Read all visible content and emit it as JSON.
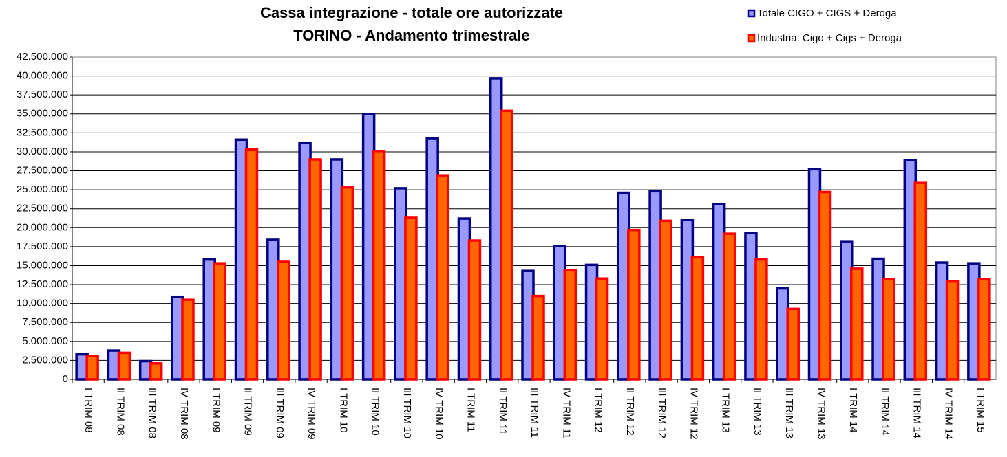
{
  "chart_data": {
    "type": "bar",
    "title": [
      "Cassa integrazione - totale ore autorizzate",
      "TORINO - Andamento trimestrale"
    ],
    "categories": [
      "I TRIM 08",
      "II TRIM 08",
      "III TRIM 08",
      "IV TRIM 08",
      "I TRIM 09",
      "II TRIM 09",
      "III TRIM 09",
      "IV TRIM 09",
      "I TRIM 10",
      "II TRIM 10",
      "III TRIM 10",
      "IV TRIM 10",
      "I TRIM 11",
      "II TRIM 11",
      "III TRIM 11",
      "IV TRIM 11",
      "I TRIM 12",
      "II TRIM 12",
      "III TRIM 12",
      "IV TRIM 12",
      "I TRIM 13",
      "II TRIM 13",
      "III TRIM 13",
      "IV TRIM 13",
      "I TRIM 14",
      "II TRIM 14",
      "III TRIM 14",
      "IV TRIM 14",
      "I TRIM 15"
    ],
    "series": [
      {
        "name": "Totale CIGO + CIGS + Deroga",
        "color": "#000080",
        "fill": "#9999ff",
        "values": [
          3300000,
          3800000,
          2400000,
          10900000,
          15800000,
          31600000,
          18400000,
          31200000,
          29000000,
          35000000,
          25200000,
          31800000,
          21200000,
          39700000,
          14300000,
          17600000,
          15100000,
          24600000,
          24800000,
          21000000,
          23100000,
          19300000,
          12000000,
          27700000,
          18200000,
          15900000,
          28900000,
          15400000,
          15300000
        ]
      },
      {
        "name": "Industria: Cigo + Cigs + Deroga",
        "color": "#ff0000",
        "fill": "#ff6600",
        "values": [
          3100000,
          3500000,
          2100000,
          10500000,
          15300000,
          30300000,
          15500000,
          29000000,
          25300000,
          30100000,
          21300000,
          26900000,
          18300000,
          35400000,
          11000000,
          14400000,
          13300000,
          19700000,
          20900000,
          16100000,
          19200000,
          15800000,
          9300000,
          24700000,
          14600000,
          13200000,
          25900000,
          12900000,
          13200000
        ]
      }
    ],
    "ylim": [
      0,
      42500000
    ],
    "yticks": [
      0,
      {
        "value": 2500000,
        "label": "2.500.000"
      },
      {
        "value": 5000000,
        "label": "5.000.000"
      },
      {
        "value": 7500000,
        "label": "7.500.000"
      },
      {
        "value": 10000000,
        "label": "10.000.000"
      },
      {
        "value": 12500000,
        "label": "12.500.000"
      },
      {
        "value": 15000000,
        "label": "15.000.000"
      },
      {
        "value": 17500000,
        "label": "17.500.000"
      },
      {
        "value": 20000000,
        "label": "20.000.000"
      },
      {
        "value": 22500000,
        "label": "22.500.000"
      },
      {
        "value": 25000000,
        "label": "25.000.000"
      },
      {
        "value": 27500000,
        "label": "27.500.000"
      },
      {
        "value": 30000000,
        "label": "30.000.000"
      },
      {
        "value": 32500000,
        "label": "32.500.000"
      },
      {
        "value": 35000000,
        "label": "35.000.000"
      },
      {
        "value": 37500000,
        "label": "37.500.000"
      },
      {
        "value": 40000000,
        "label": "40.000.000"
      },
      {
        "value": 42500000,
        "label": "42.500.000"
      }
    ],
    "grid": true
  }
}
